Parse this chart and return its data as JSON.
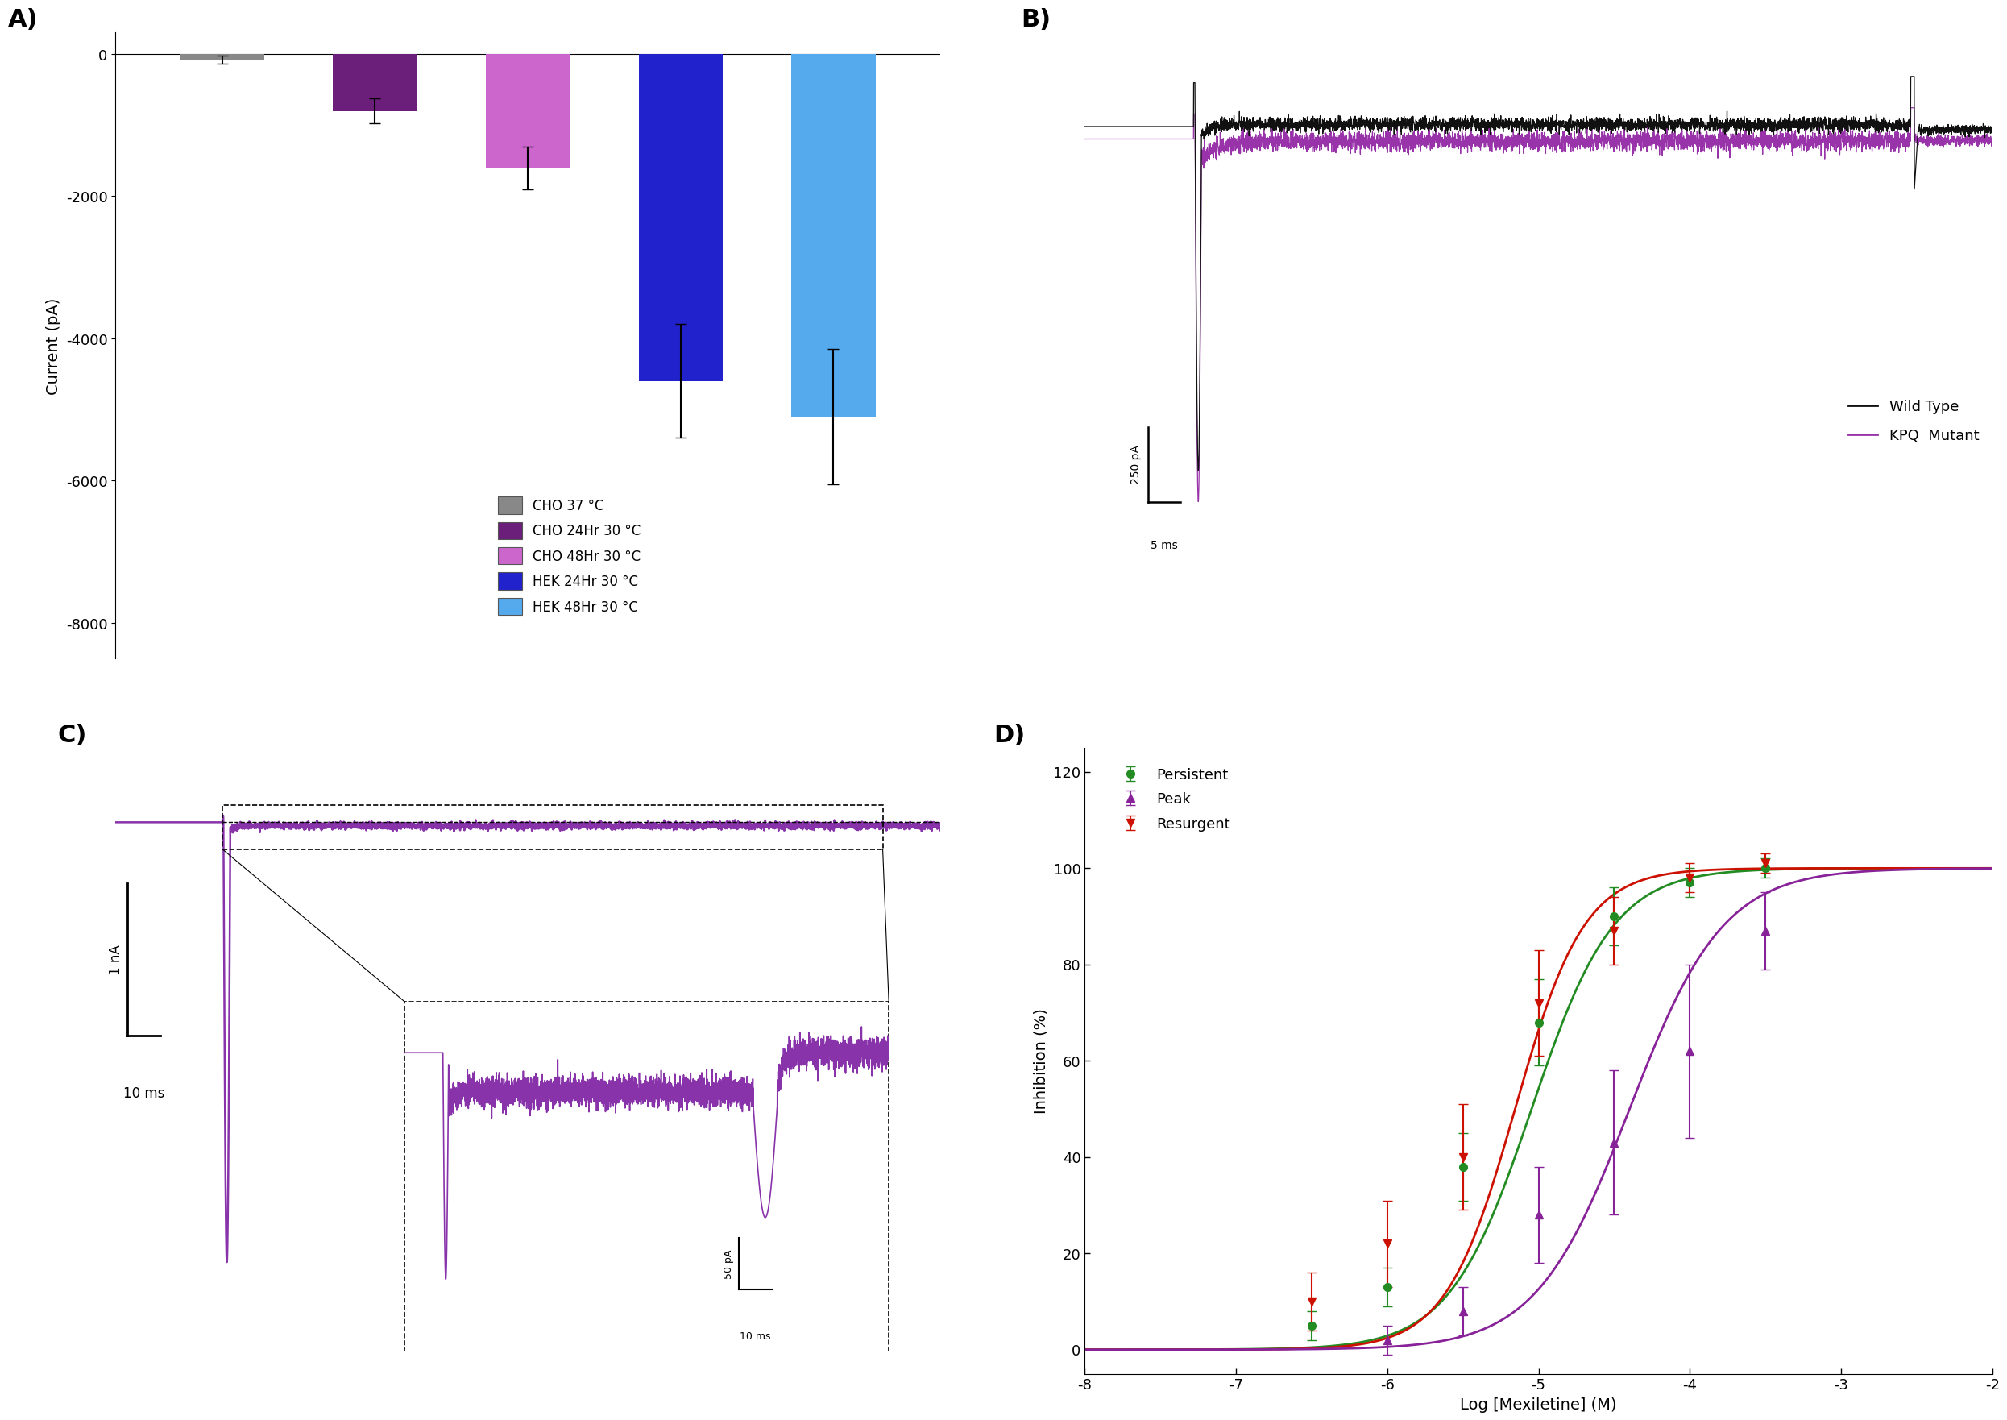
{
  "panel_A": {
    "categories": [
      "CHO 37 °C",
      "CHO 24Hr 30 °C",
      "CHO 48Hr 30 °C",
      "HEK 24Hr 30 °C",
      "HEK 48Hr 30 °C"
    ],
    "values": [
      -80,
      -800,
      -1600,
      -4600,
      -5100
    ],
    "errors": [
      60,
      180,
      300,
      800,
      950
    ],
    "colors": [
      "#888888",
      "#6B1F7A",
      "#CC66CC",
      "#2222CC",
      "#55AAEE"
    ],
    "ylabel": "Current (pA)",
    "ylim": [
      -8500,
      300
    ],
    "yticks": [
      0,
      -2000,
      -4000,
      -6000,
      -8000
    ]
  },
  "panel_B": {
    "wt_color": "#111111",
    "kpq_color": "#9933AA",
    "scale_bar_y_label": "250 pA",
    "scale_bar_x_label": "5 ms"
  },
  "panel_C": {
    "color": "#8833AA",
    "scale_bar_y_label": "1 nA",
    "scale_bar_x_label": "10 ms",
    "inset_scale_y_label": "50 pA",
    "inset_scale_x_label": "10 ms"
  },
  "panel_D": {
    "xlabel": "Log [Mexiletine] (M)",
    "ylabel": "Inhibition (%)",
    "xlim": [
      -8,
      -2
    ],
    "ylim": [
      -5,
      125
    ],
    "xticks": [
      -8,
      -7,
      -6,
      -5,
      -4,
      -3,
      -2
    ],
    "ytick_vals": [
      0,
      20,
      40,
      60,
      80,
      100,
      120
    ],
    "persistent_color": "#228B22",
    "peak_color": "#882299",
    "resurgent_color": "#CC1100",
    "persistent_x": [
      -6.5,
      -6.0,
      -5.5,
      -5.0,
      -4.5,
      -4.0,
      -3.5
    ],
    "persistent_y": [
      5,
      13,
      38,
      68,
      90,
      97,
      100
    ],
    "persistent_err": [
      3,
      4,
      7,
      9,
      6,
      3,
      2
    ],
    "peak_x": [
      -6.0,
      -5.5,
      -5.0,
      -4.5,
      -4.0,
      -3.5
    ],
    "peak_y": [
      2,
      8,
      28,
      43,
      62,
      87
    ],
    "peak_err": [
      3,
      5,
      10,
      15,
      18,
      8
    ],
    "resurgent_x": [
      -6.5,
      -6.0,
      -5.5,
      -5.0,
      -4.5,
      -4.0,
      -3.5
    ],
    "resurgent_y": [
      10,
      22,
      40,
      72,
      87,
      98,
      101
    ],
    "resurgent_err": [
      6,
      9,
      11,
      11,
      7,
      3,
      2
    ],
    "ic50_persistent": 9e-06,
    "ic50_peak": 4e-05,
    "ic50_resurgent": 7e-06,
    "n_persistent": 1.6,
    "n_peak": 1.4,
    "n_resurgent": 1.9
  },
  "background_color": "#ffffff",
  "panel_labels": [
    "A)",
    "B)",
    "C)",
    "D)"
  ],
  "panel_label_fontsize": 22
}
